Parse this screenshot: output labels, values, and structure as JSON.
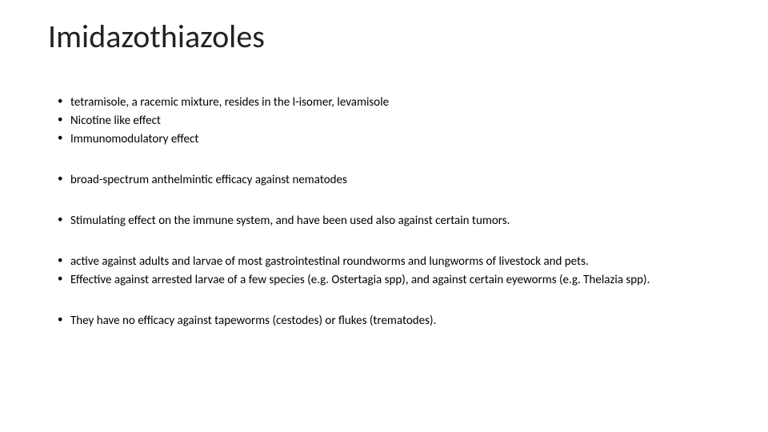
{
  "slide": {
    "title": "Imidazothiazoles",
    "title_fontsize": 40,
    "title_color": "#222222",
    "background_color": "#ffffff",
    "body_fontsize": 15,
    "body_color": "#000000",
    "groups": [
      {
        "items": [
          "tetramisole, a racemic mixture, resides in the l-isomer, levamisole",
          "Nicotine like effect",
          "Immunomodulatory effect"
        ]
      },
      {
        "items": [
          "broad-spectrum anthelmintic efficacy against nematodes"
        ]
      },
      {
        "items": [
          "Stimulating effect on the immune system, and have been used also against certain tumors."
        ]
      },
      {
        "items": [
          "active against adults and larvae of most gastrointestinal roundworms and lungworms of livestock and pets.",
          "Effective against arrested larvae of a few species (e.g. Ostertagia spp), and against certain eyeworms (e.g. Thelazia spp)."
        ]
      },
      {
        "items": [
          "They have no efficacy against tapeworms (cestodes) or flukes (trematodes)."
        ]
      }
    ]
  }
}
